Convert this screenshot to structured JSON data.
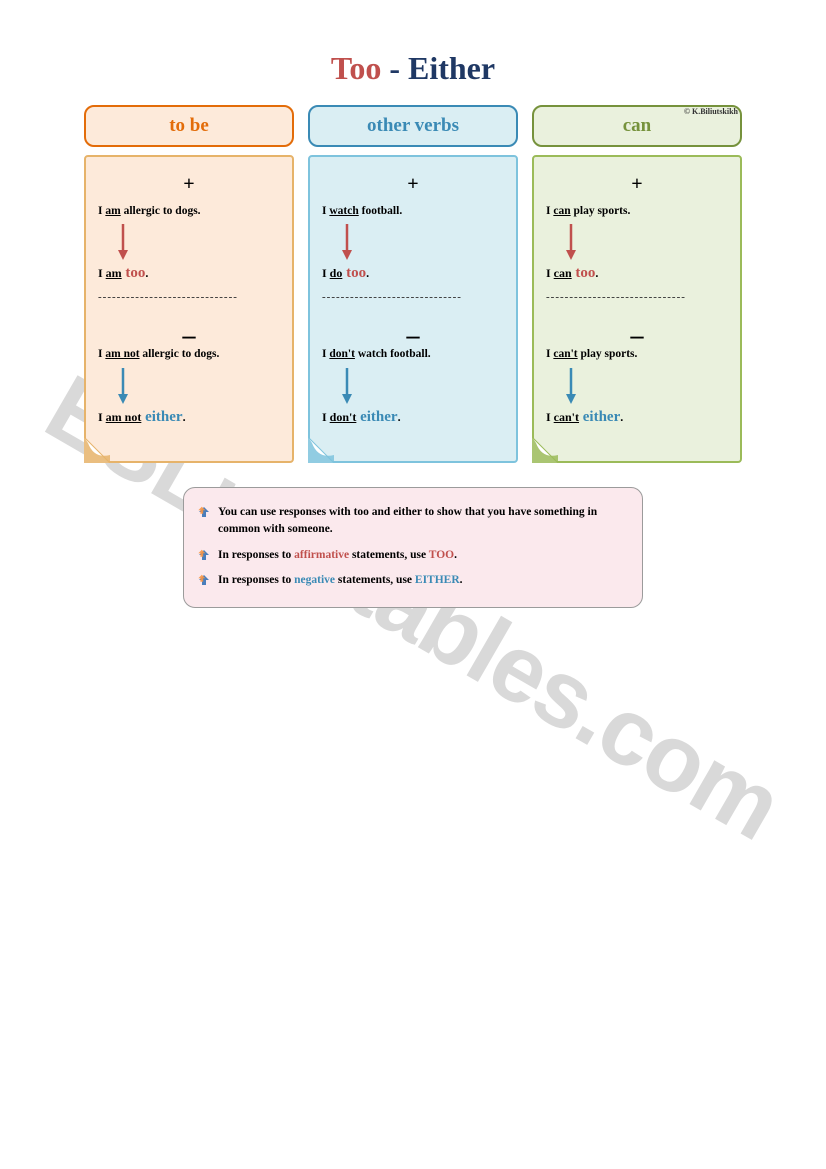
{
  "title": {
    "too": "Too",
    "dash": " - ",
    "either": "Either"
  },
  "columns": [
    {
      "key": "tobe",
      "header": "to be",
      "header_class": "hdr-orange",
      "card_class": "card-orange",
      "fold_color": "#e6b36a",
      "pos_sentence_pre": "I ",
      "pos_sentence_u": "am",
      "pos_sentence_post": " allergic to dogs.",
      "pos_resp_pre": "I ",
      "pos_resp_u": "am",
      "pos_resp_word": " too",
      "pos_resp_dot": ".",
      "neg_sentence_pre": "I ",
      "neg_sentence_u": "am not",
      "neg_sentence_post": " allergic to dogs.",
      "neg_resp_pre": "I ",
      "neg_resp_u": "am not",
      "neg_resp_word": " either",
      "neg_resp_dot": "."
    },
    {
      "key": "other",
      "header": "other verbs",
      "header_class": "hdr-blue",
      "card_class": "card-blue",
      "fold_color": "#7ec3dd",
      "pos_sentence_pre": "I ",
      "pos_sentence_u": "watch",
      "pos_sentence_post": " football.",
      "pos_resp_pre": "I ",
      "pos_resp_u": "do",
      "pos_resp_word": " too",
      "pos_resp_dot": ".",
      "neg_sentence_pre": "I ",
      "neg_sentence_u": "don't",
      "neg_sentence_post": " watch football.",
      "neg_resp_pre": "I ",
      "neg_resp_u": "don't",
      "neg_resp_word": " either",
      "neg_resp_dot": "."
    },
    {
      "key": "can",
      "header": "can",
      "header_class": "hdr-green",
      "card_class": "card-green",
      "fold_color": "#9bbb59",
      "pos_sentence_pre": "I ",
      "pos_sentence_u": "can",
      "pos_sentence_post": " play sports.",
      "pos_resp_pre": "I ",
      "pos_resp_u": "can",
      "pos_resp_word": " too",
      "pos_resp_dot": ".",
      "neg_sentence_pre": "I ",
      "neg_sentence_u": "can't",
      "neg_sentence_post": " play sports.",
      "neg_resp_pre": "I ",
      "neg_resp_u": "can't",
      "neg_resp_word": " either",
      "neg_resp_dot": "."
    }
  ],
  "dashes": "------------------------------",
  "credit": "© K.Biliutskikh",
  "arrow_colors": {
    "too": "#c0504d",
    "either": "#3a8ab5"
  },
  "rules": {
    "r1_a": "You can use responses with too and either to show that you have something in common with someone.",
    "r2_a": "In responses to ",
    "r2_aff": "affirmative",
    "r2_b": " statements, use ",
    "r2_too": "TOO",
    "r2_c": ".",
    "r3_a": "In responses to ",
    "r3_neg": "negative",
    "r3_b": " statements, use ",
    "r3_either": "EITHER",
    "r3_c": "."
  },
  "watermark": "ESLprintables.com",
  "bullet_colors": {
    "top": "#4a7ebb",
    "bottom": "#f79646"
  }
}
